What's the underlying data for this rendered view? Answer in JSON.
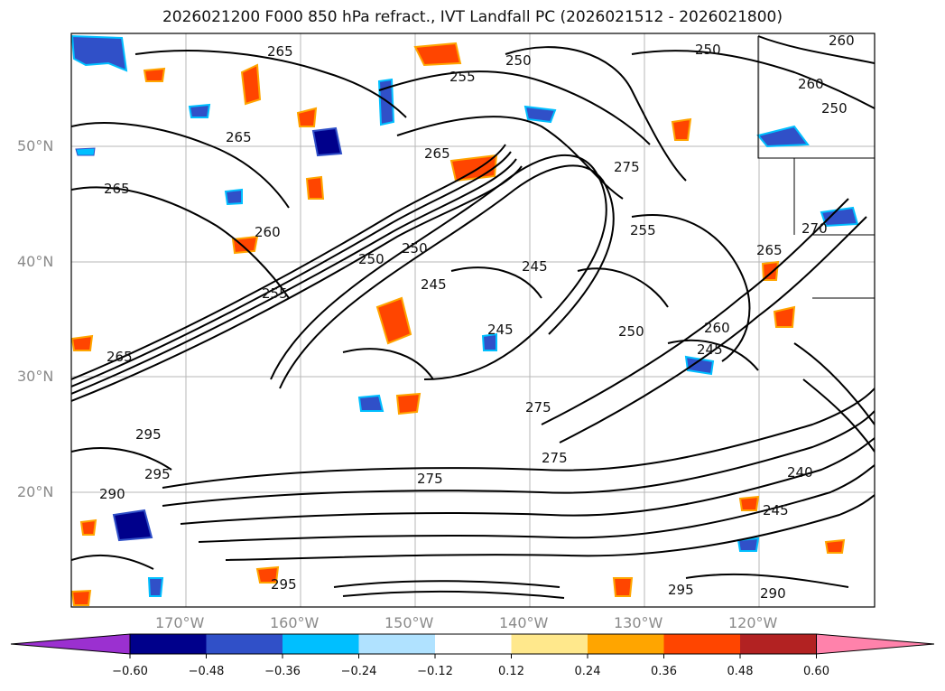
{
  "title": "2026021200 F000 850 hPa refract., IVT Landfall PC (2026021512 - 2026021800)",
  "lat_labels": [
    "50°N",
    "40°N",
    "30°N",
    "20°N"
  ],
  "lon_labels": [
    "170°W",
    "160°W",
    "150°W",
    "140°W",
    "130°W",
    "120°W"
  ],
  "contour_labels": [
    "260",
    "265",
    "255",
    "250",
    "250",
    "260",
    "250",
    "265",
    "265",
    "275",
    "265",
    "260",
    "255",
    "250",
    "245",
    "245",
    "270",
    "255",
    "265",
    "250",
    "245",
    "250",
    "260",
    "245",
    "265",
    "275",
    "295",
    "295",
    "290",
    "275",
    "275",
    "245",
    "240",
    "295",
    "290",
    "295"
  ],
  "colorbar": {
    "ticks": [
      "−0.60",
      "−0.48",
      "−0.36",
      "−0.24",
      "−0.12",
      "0.12",
      "0.24",
      "0.36",
      "0.48",
      "0.60"
    ],
    "colors": [
      "#9b30d0",
      "#00008b",
      "#3050c8",
      "#00bfff",
      "#b0e2ff",
      "#ffffff",
      "#ffe88c",
      "#ffa500",
      "#ff4500",
      "#b22222",
      "#ff82ab"
    ]
  }
}
